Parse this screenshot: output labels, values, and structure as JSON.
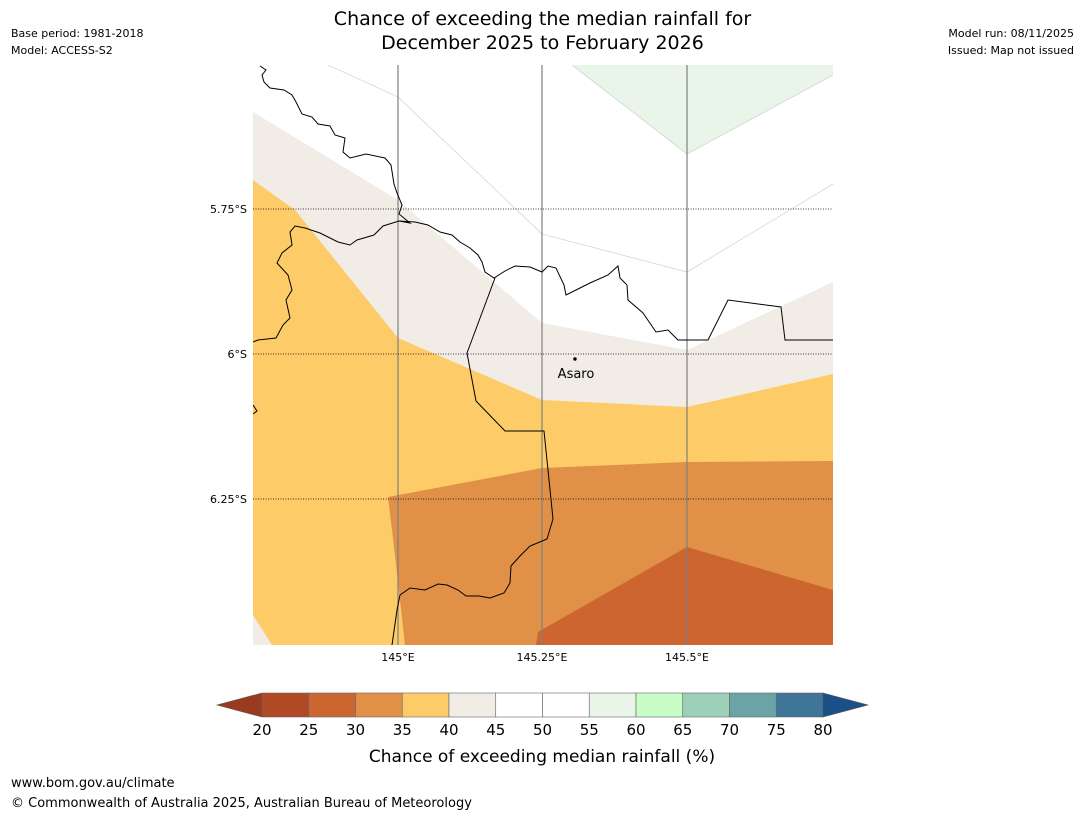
{
  "title": {
    "line1": "Chance of exceeding the median rainfall for",
    "line2": "December 2025 to February 2026"
  },
  "meta_left": {
    "base_period": "Base period: 1981-2018",
    "model": "Model: ACCESS-S2"
  },
  "meta_right": {
    "model_run": "Model run: 08/11/2025",
    "issued": "Issued: Map not issued"
  },
  "map": {
    "lat_labels": [
      "5.75°S",
      "6°S",
      "6.25°S"
    ],
    "lon_labels": [
      "145°E",
      "145.25°E",
      "145.5°E"
    ],
    "place": "Asaro"
  },
  "colorbar": {
    "title": "Chance of exceeding median rainfall (%)",
    "ticks": [
      "20",
      "25",
      "30",
      "35",
      "40",
      "45",
      "50",
      "55",
      "60",
      "65",
      "70",
      "75",
      "80"
    ],
    "colors": {
      "below_20": "#9b3a1f",
      "c20_25": "#b04a25",
      "c25_30": "#cc6530",
      "c30_35": "#e09147",
      "c35_40": "#fdcb68",
      "c40_45": "#f1ece6",
      "c45_50": "#ffffff",
      "c50_55": "#ffffff",
      "c55_60": "#e8f5e8",
      "c60_65": "#c8fdc8",
      "c65_70": "#9dd0b8",
      "c70_75": "#6ca4a6",
      "c75_80": "#3f7597",
      "above_80": "#1a4f88"
    }
  },
  "footer": {
    "url": "www.bom.gov.au/climate",
    "copyright": "© Commonwealth of Australia 2025, Australian Bureau of Meteorology"
  }
}
